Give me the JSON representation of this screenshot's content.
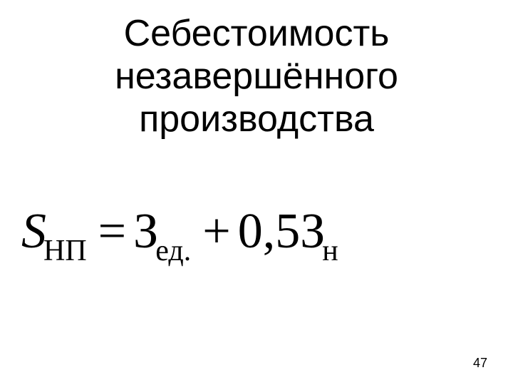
{
  "title": {
    "line1": "Себестоимость",
    "line2": "незавершённого",
    "line3": "производства",
    "fontsize": 52,
    "color": "#000000"
  },
  "formula": {
    "var_main": "S",
    "var_sub": "НП",
    "eq": "=",
    "term1_main": "З",
    "term1_sub": "ед.",
    "plus": "+",
    "coeff": "0,5",
    "term2_main": "З",
    "term2_sub": "н",
    "main_fontsize": 70,
    "sub_fontsize": 42,
    "color": "#000000",
    "font_family": "Times New Roman"
  },
  "page_number": "47",
  "background_color": "#ffffff"
}
